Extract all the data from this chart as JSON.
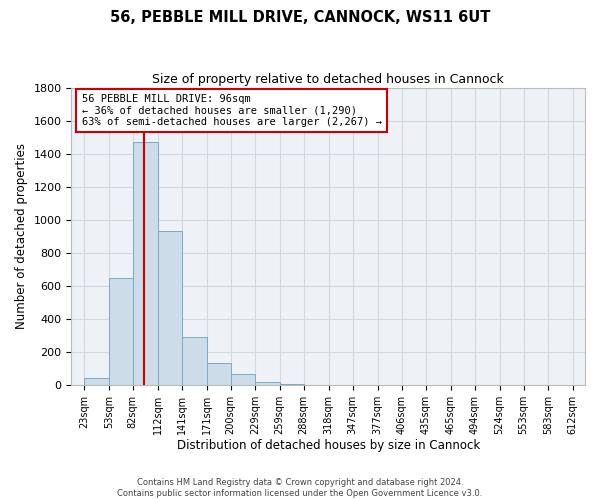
{
  "title": "56, PEBBLE MILL DRIVE, CANNOCK, WS11 6UT",
  "subtitle": "Size of property relative to detached houses in Cannock",
  "xlabel": "Distribution of detached houses by size in Cannock",
  "ylabel": "Number of detached properties",
  "bar_color": "#ccdce8",
  "bar_edge_color": "#7aaac8",
  "grid_color": "#d0d8e0",
  "background_color": "#eef2f6",
  "red_line_x": 96,
  "bins": [
    23,
    53,
    82,
    112,
    141,
    171,
    200,
    229,
    259,
    288,
    318,
    347,
    377,
    406,
    435,
    465,
    494,
    524,
    553,
    583,
    612
  ],
  "bin_labels": [
    "23sqm",
    "53sqm",
    "82sqm",
    "112sqm",
    "141sqm",
    "171sqm",
    "200sqm",
    "229sqm",
    "259sqm",
    "288sqm",
    "318sqm",
    "347sqm",
    "377sqm",
    "406sqm",
    "435sqm",
    "465sqm",
    "494sqm",
    "524sqm",
    "553sqm",
    "583sqm",
    "612sqm"
  ],
  "bar_heights": [
    40,
    650,
    1470,
    935,
    290,
    130,
    65,
    20,
    5,
    0,
    0,
    0,
    0,
    0,
    0,
    0,
    0,
    0,
    0,
    0
  ],
  "annotation_title": "56 PEBBLE MILL DRIVE: 96sqm",
  "annotation_line1": "← 36% of detached houses are smaller (1,290)",
  "annotation_line2": "63% of semi-detached houses are larger (2,267) →",
  "annotation_box_color": "white",
  "annotation_box_edge": "#cc0000",
  "footer_line1": "Contains HM Land Registry data © Crown copyright and database right 2024.",
  "footer_line2": "Contains public sector information licensed under the Open Government Licence v3.0.",
  "ylim": [
    0,
    1800
  ],
  "yticks": [
    0,
    200,
    400,
    600,
    800,
    1000,
    1200,
    1400,
    1600,
    1800
  ],
  "figsize": [
    6.0,
    5.0
  ],
  "dpi": 100
}
